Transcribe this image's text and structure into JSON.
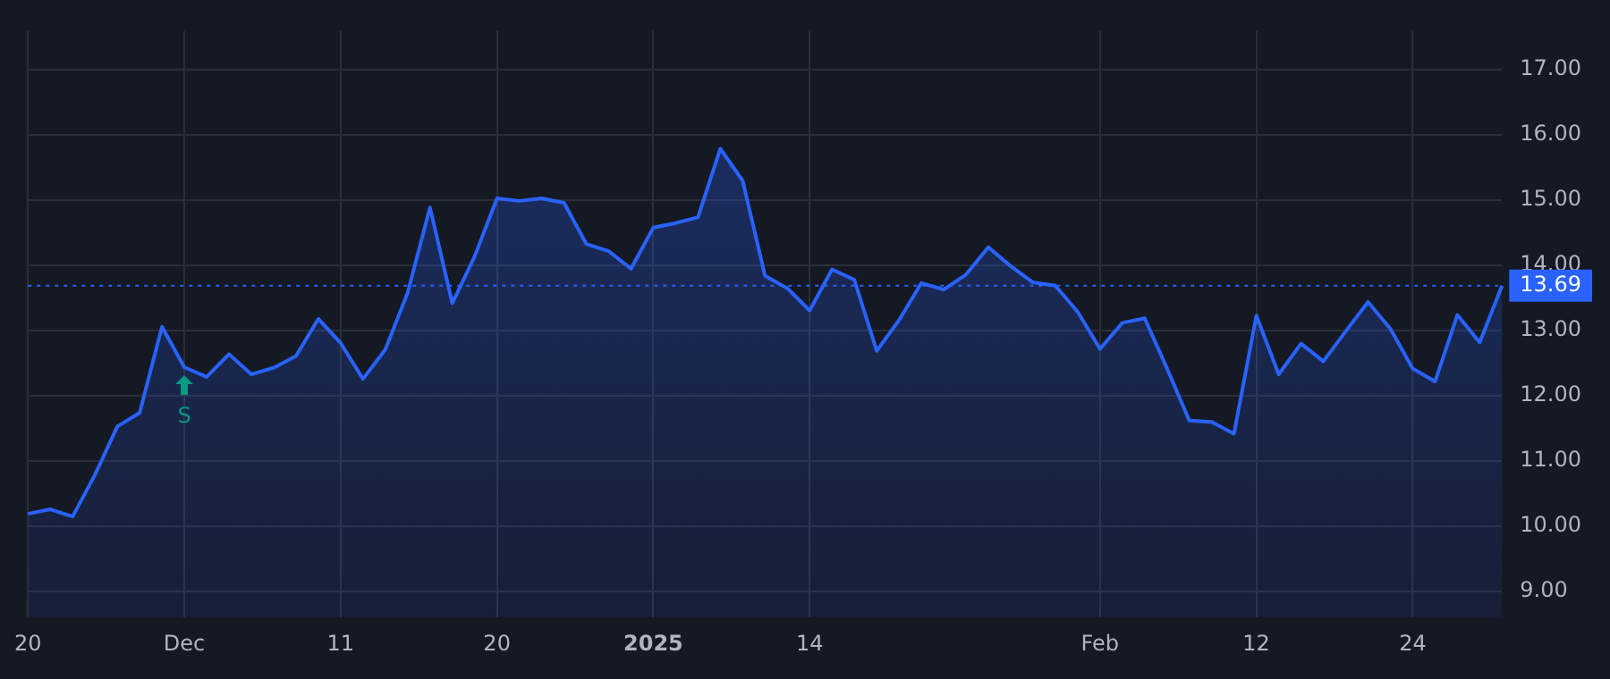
{
  "chart_data": {
    "type": "area",
    "categories": [
      "20",
      null,
      null,
      null,
      null,
      null,
      null,
      "Dec",
      null,
      null,
      null,
      null,
      null,
      null,
      "11",
      null,
      null,
      null,
      null,
      null,
      null,
      "20",
      null,
      null,
      null,
      null,
      null,
      null,
      "2025",
      null,
      null,
      null,
      null,
      null,
      null,
      "14",
      null,
      null,
      null,
      null,
      null,
      null,
      null,
      null,
      null,
      null,
      null,
      null,
      "Feb",
      null,
      null,
      null,
      null,
      null,
      null,
      "12",
      null,
      null,
      null,
      null,
      null,
      null,
      "24",
      null,
      null,
      null,
      null
    ],
    "series": [
      {
        "color": "#2962ff",
        "values": [
          10.19,
          10.26,
          10.15,
          10.79,
          11.53,
          11.74,
          13.06,
          12.44,
          12.29,
          12.64,
          12.33,
          12.43,
          12.61,
          13.18,
          12.81,
          12.26,
          12.71,
          13.58,
          14.89,
          13.42,
          14.14,
          15.03,
          14.99,
          15.03,
          14.96,
          14.33,
          14.22,
          13.95,
          14.58,
          14.65,
          14.74,
          15.79,
          15.3,
          13.84,
          13.65,
          13.31,
          13.94,
          13.78,
          12.69,
          13.16,
          13.73,
          13.63,
          13.86,
          14.28,
          13.99,
          13.74,
          13.69,
          13.29,
          12.72,
          13.12,
          13.19,
          12.42,
          11.62,
          11.6,
          11.42,
          13.23,
          12.33,
          12.8,
          12.53,
          12.99,
          13.44,
          13.03,
          12.42,
          12.22,
          13.24,
          12.82,
          13.69
        ]
      }
    ],
    "ylim": [
      8.6,
      17.6
    ],
    "yticks": [
      {
        "value": 9,
        "label": "9.00"
      },
      {
        "value": 10,
        "label": "10.00"
      },
      {
        "value": 11,
        "label": "11.00"
      },
      {
        "value": 12,
        "label": "12.00"
      },
      {
        "value": 13,
        "label": "13.00"
      },
      {
        "value": 14,
        "label": "14.00"
      },
      {
        "value": 15,
        "label": "15.00"
      },
      {
        "value": 16,
        "label": "16.00"
      },
      {
        "value": 17,
        "label": "17.00"
      }
    ],
    "grid": true,
    "ref_lines": [
      {
        "axis": "y",
        "value": 13.69,
        "label": "13.69",
        "color": "#2962ff",
        "line_style": "dotted"
      }
    ],
    "annotations": [
      {
        "text": "S",
        "x": "Dec",
        "y": 12.44
      }
    ]
  }
}
